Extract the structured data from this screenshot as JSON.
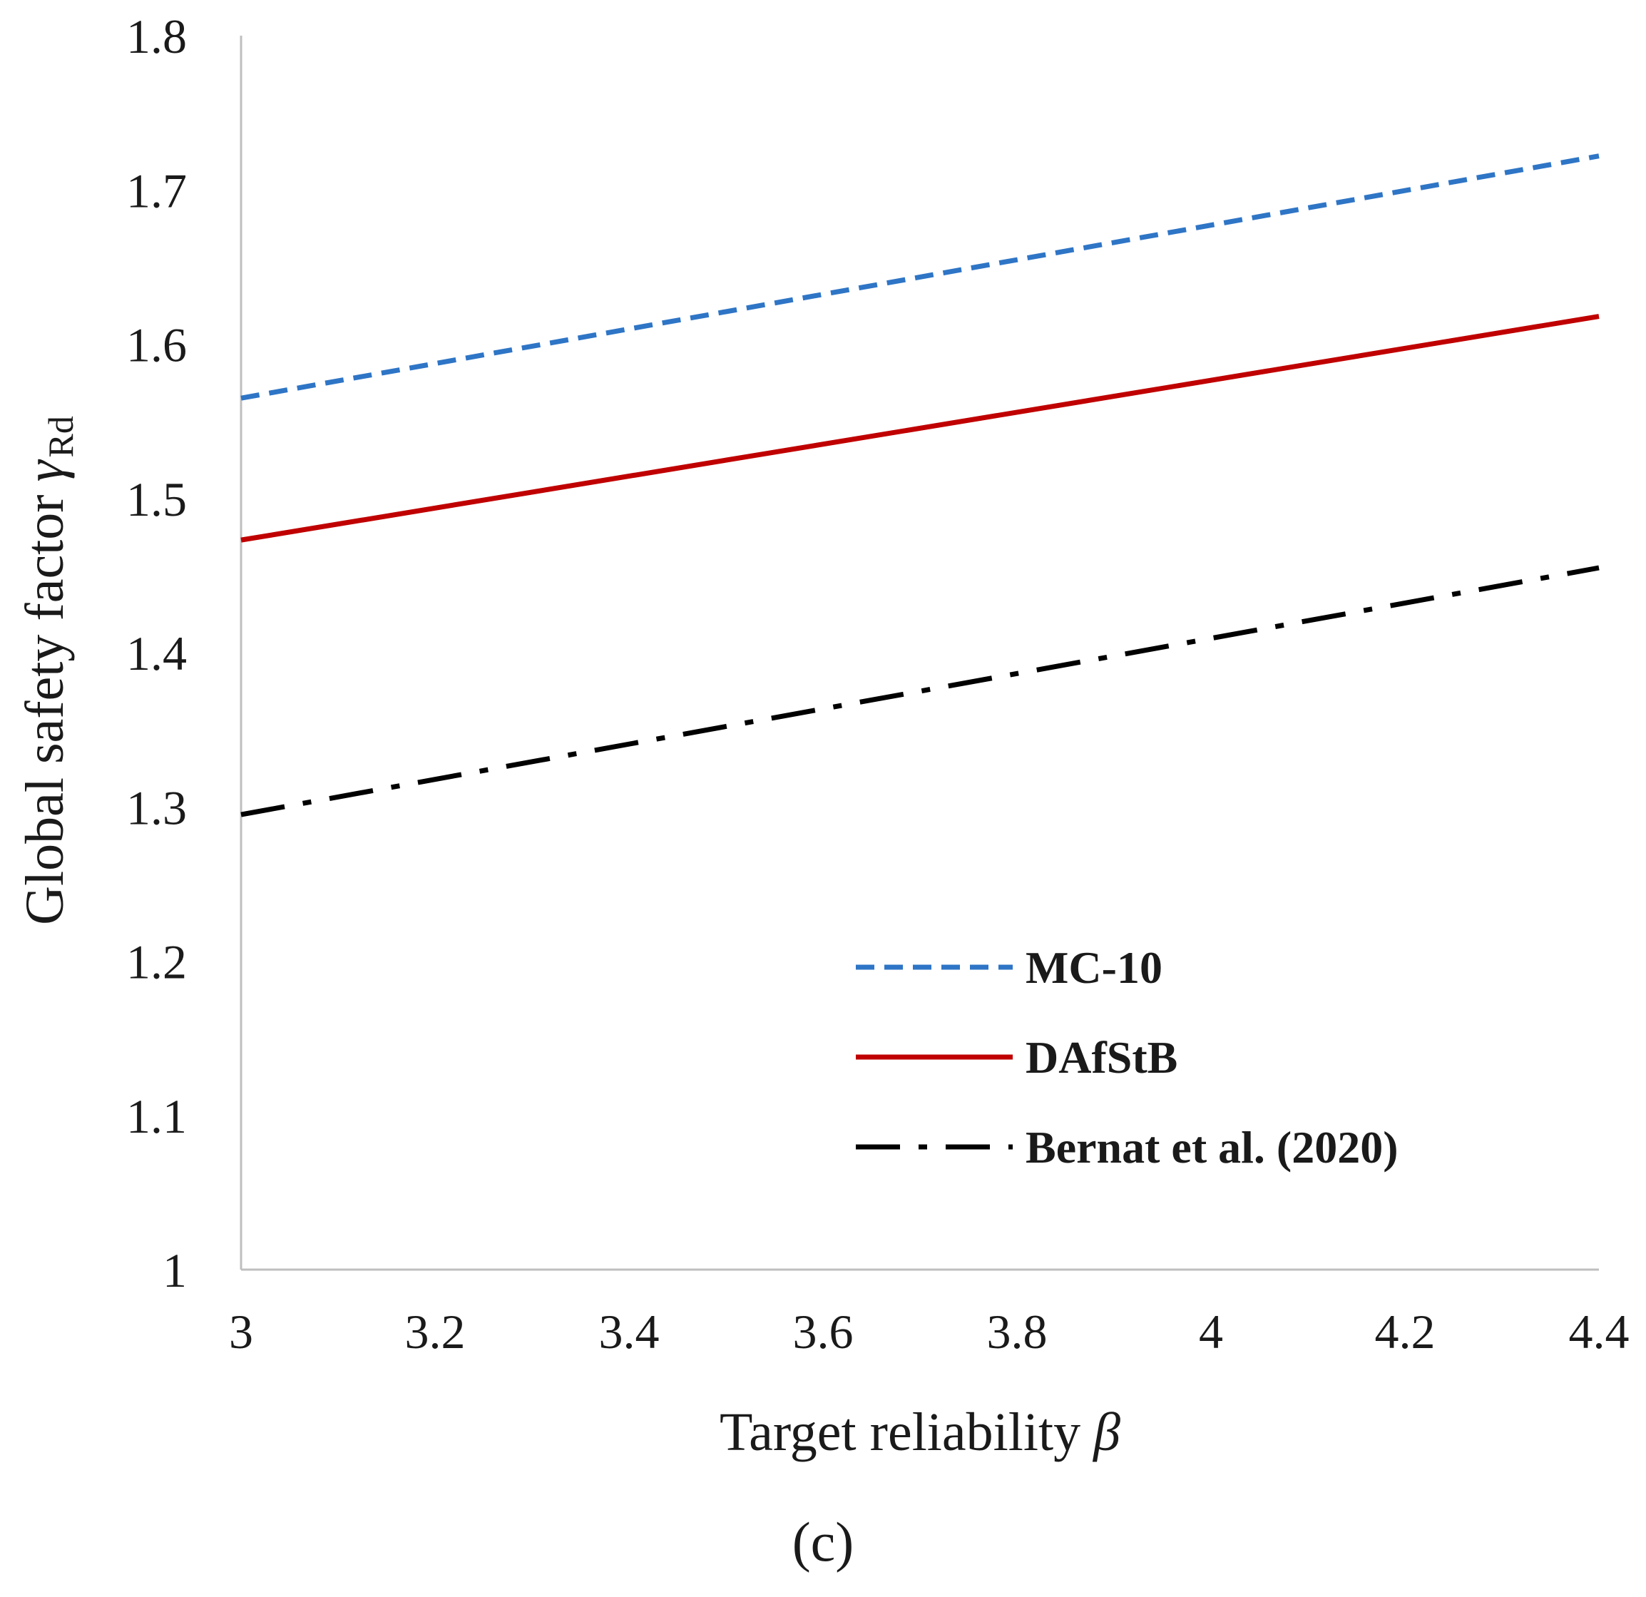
{
  "chart_data": {
    "type": "line",
    "title": "",
    "xlabel": "Target reliability",
    "xlabel_symbol": "β",
    "ylabel": "Global safety factor",
    "ylabel_symbol": "γ",
    "ylabel_subscript": "Rd",
    "xlim": [
      3,
      4.4
    ],
    "ylim": [
      1,
      1.8
    ],
    "x_ticks": [
      "3",
      "3.2",
      "3.4",
      "3.6",
      "3.8",
      "4",
      "4.2",
      "4.4"
    ],
    "y_ticks": [
      "1",
      "1.1",
      "1.2",
      "1.3",
      "1.4",
      "1.5",
      "1.6",
      "1.7",
      "1.8"
    ],
    "grid": false,
    "legend_position": "lower-right",
    "series": [
      {
        "name": "MC-10",
        "x": [
          3,
          4.4
        ],
        "y": [
          1.565,
          1.722
        ],
        "color": "#2E75C6",
        "style": "dashed"
      },
      {
        "name": "DAfStB",
        "x": [
          3,
          4.4
        ],
        "y": [
          1.473,
          1.618
        ],
        "color": "#C00000",
        "style": "solid"
      },
      {
        "name": "Bernat et al. (2020)",
        "x": [
          3,
          4.4
        ],
        "y": [
          1.295,
          1.455
        ],
        "color": "#000000",
        "style": "dash-dot"
      }
    ]
  },
  "caption": "(c)"
}
